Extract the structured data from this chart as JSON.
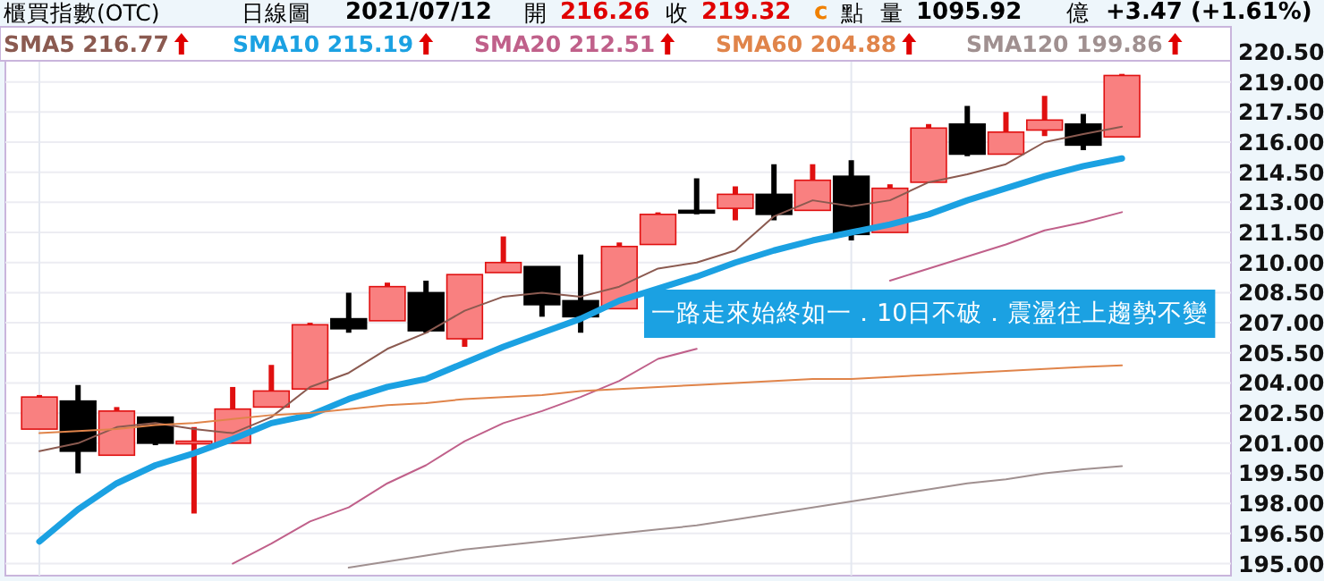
{
  "chart_data": {
    "type": "candlestick",
    "title": "櫃買指數(OTC)",
    "annotations": [
      "日線圖",
      "2021/07/12",
      "開",
      "216.26",
      "收",
      "219.32",
      "c",
      "點",
      "量",
      "1095.92",
      "億",
      "+3.47 (+1.61%)",
      "一路走來始終如一．10日不破．震盪往上趨勢不變"
    ],
    "categories": [
      null,
      null,
      null,
      null,
      null,
      null,
      null,
      null,
      null,
      null,
      null,
      null,
      null,
      null,
      null,
      null,
      null,
      null,
      null,
      null,
      null,
      null,
      null,
      null,
      null,
      null,
      null,
      null,
      null
    ],
    "ohlc": [
      [
        201.7,
        203.4,
        201.7,
        203.3
      ],
      [
        203.1,
        203.9,
        199.5,
        200.6
      ],
      [
        200.4,
        202.8,
        200.4,
        202.6
      ],
      [
        202.3,
        202.3,
        200.9,
        201.0
      ],
      [
        201.0,
        201.8,
        197.5,
        201.1
      ],
      [
        201.0,
        203.8,
        201.0,
        202.7
      ],
      [
        202.8,
        204.9,
        202.8,
        203.6
      ],
      [
        203.7,
        207.0,
        203.7,
        206.9
      ],
      [
        207.2,
        208.5,
        206.5,
        206.7
      ],
      [
        207.1,
        209.0,
        207.1,
        208.8
      ],
      [
        208.5,
        209.1,
        206.5,
        206.6
      ],
      [
        206.2,
        209.4,
        205.8,
        209.4
      ],
      [
        209.5,
        211.3,
        209.5,
        210.0
      ],
      [
        209.8,
        209.8,
        207.3,
        207.9
      ],
      [
        208.1,
        210.4,
        206.5,
        207.3
      ],
      [
        207.7,
        211.0,
        207.7,
        210.8
      ],
      [
        210.9,
        212.5,
        210.9,
        212.4
      ],
      [
        212.6,
        214.2,
        212.4,
        212.5
      ],
      [
        212.7,
        213.8,
        212.1,
        213.4
      ],
      [
        213.4,
        214.9,
        212.1,
        212.4
      ],
      [
        212.6,
        214.9,
        212.6,
        214.1
      ],
      [
        214.3,
        215.1,
        211.1,
        211.4
      ],
      [
        211.5,
        213.9,
        211.5,
        213.7
      ],
      [
        214.0,
        216.9,
        214.0,
        216.7
      ],
      [
        216.9,
        217.8,
        215.3,
        215.4
      ],
      [
        215.4,
        217.5,
        215.4,
        216.5
      ],
      [
        216.6,
        218.3,
        216.3,
        217.1
      ],
      [
        216.9,
        217.4,
        215.6,
        215.85
      ],
      [
        216.26,
        219.4,
        216.26,
        219.32
      ]
    ],
    "series": [
      {
        "type": "line",
        "name": "SMA5 216.77",
        "color": "#8b5a50",
        "values": [
          200.6,
          201.0,
          201.8,
          202.0,
          201.7,
          201.5,
          202.3,
          203.8,
          204.5,
          205.7,
          206.5,
          207.6,
          208.3,
          208.5,
          208.3,
          208.8,
          209.7,
          210.0,
          210.6,
          212.3,
          213.1,
          212.8,
          213.1,
          214.0,
          214.4,
          214.9,
          216.0,
          216.4,
          216.77
        ]
      },
      {
        "type": "line",
        "name": "SMA10 215.19",
        "color": "#1ba1e2",
        "values": [
          196.1,
          197.7,
          199.0,
          199.9,
          200.5,
          201.2,
          202.0,
          202.4,
          203.2,
          203.8,
          204.2,
          205.0,
          205.8,
          206.5,
          207.2,
          208.1,
          208.7,
          209.3,
          210.0,
          210.6,
          211.1,
          211.5,
          211.9,
          212.4,
          213.1,
          213.7,
          214.3,
          214.8,
          215.19
        ]
      },
      {
        "type": "line",
        "name": "SMA20 212.51",
        "color": "#c0608a",
        "values": [
          null,
          null,
          null,
          null,
          null,
          195.0,
          196.0,
          197.1,
          197.8,
          199.0,
          199.9,
          201.1,
          202.0,
          202.6,
          203.3,
          204.1,
          205.2,
          205.7,
          null,
          null,
          null,
          null,
          209.1,
          209.7,
          210.3,
          210.9,
          211.6,
          212.0,
          212.51
        ]
      },
      {
        "type": "line",
        "name": "SMA60 204.88",
        "color": "#e0844a",
        "values": [
          201.5,
          201.6,
          201.7,
          201.9,
          202.0,
          202.2,
          202.4,
          202.5,
          202.7,
          202.9,
          203.0,
          203.2,
          203.3,
          203.4,
          203.6,
          203.7,
          203.8,
          203.9,
          204.0,
          204.1,
          204.2,
          204.2,
          204.3,
          204.4,
          204.5,
          204.6,
          204.7,
          204.8,
          204.88
        ]
      },
      {
        "type": "line",
        "name": "SMA120 199.86",
        "color": "#a09090",
        "values": [
          null,
          null,
          null,
          null,
          null,
          null,
          null,
          null,
          194.8,
          195.1,
          195.4,
          195.7,
          195.9,
          196.1,
          196.3,
          196.5,
          196.7,
          196.9,
          197.2,
          197.5,
          197.8,
          198.1,
          198.4,
          198.7,
          199.0,
          199.2,
          199.5,
          199.7,
          199.86
        ]
      }
    ],
    "ylim": [
      194.4,
      221.3
    ],
    "yticks": [
      {
        "value": 195,
        "label": "195.00"
      },
      {
        "value": 196.5,
        "label": "196.50"
      },
      {
        "value": 198,
        "label": "198.00"
      },
      {
        "value": 199.5,
        "label": "199.50"
      },
      {
        "value": 201,
        "label": "201.00"
      },
      {
        "value": 202.5,
        "label": "202.50"
      },
      {
        "value": 204,
        "label": "204.00"
      },
      {
        "value": 205.5,
        "label": "205.50"
      },
      {
        "value": 207,
        "label": "207.00"
      },
      {
        "value": 208.5,
        "label": "208.50"
      },
      {
        "value": 210,
        "label": "210.00"
      },
      {
        "value": 211.5,
        "label": "211.50"
      },
      {
        "value": 213,
        "label": "213.00"
      },
      {
        "value": 214.5,
        "label": "214.50"
      },
      {
        "value": 216,
        "label": "216.00"
      },
      {
        "value": 217.5,
        "label": "217.50"
      },
      {
        "value": 219,
        "label": "219.00"
      },
      {
        "value": 220.5,
        "label": "220.50"
      }
    ],
    "grid": "y",
    "legend": "top",
    "tick_labels": "y"
  }
}
